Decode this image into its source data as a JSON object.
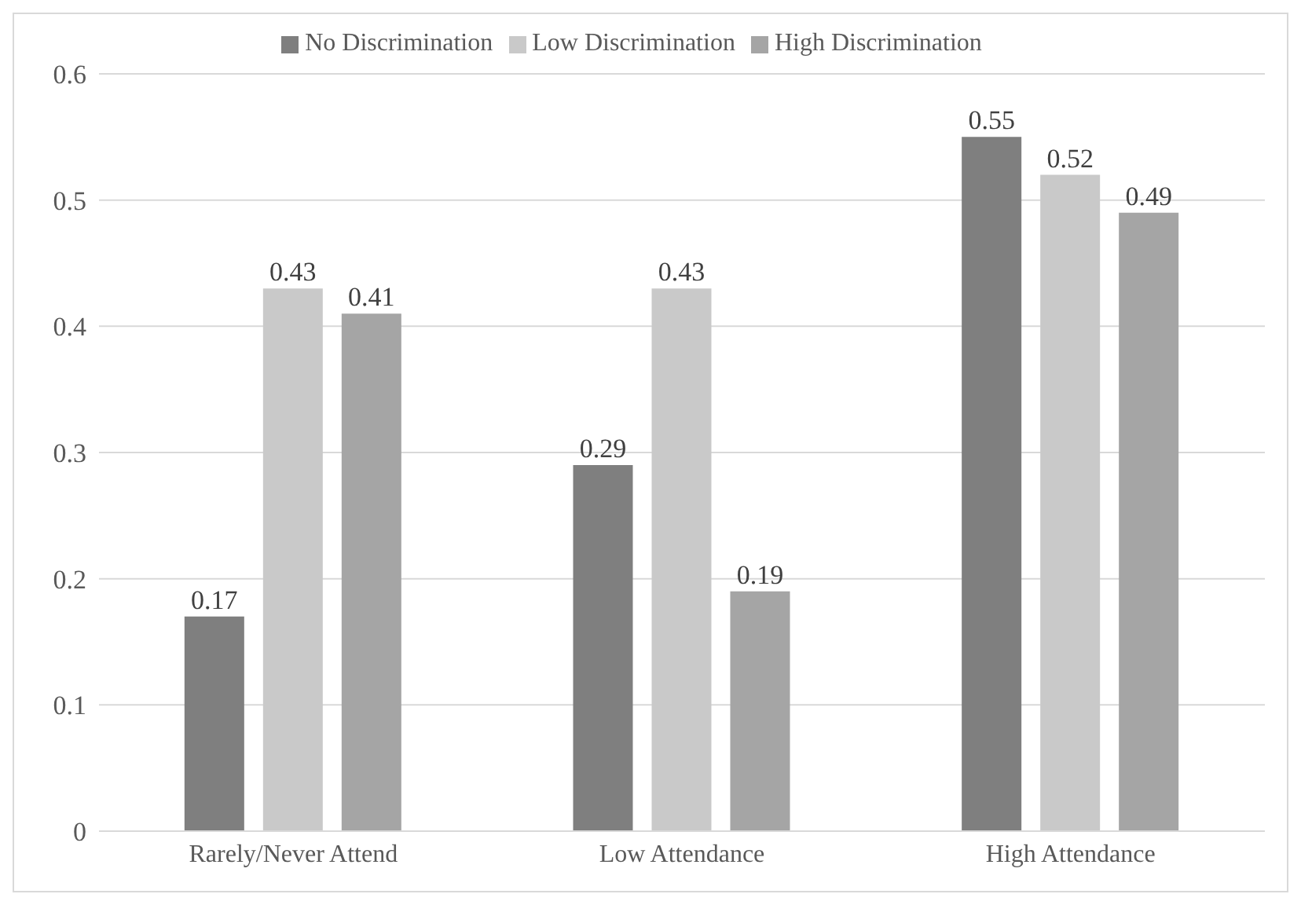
{
  "chart_data": {
    "type": "bar",
    "categories": [
      "Rarely/Never Attend",
      "Low Attendance",
      "High Attendance"
    ],
    "series": [
      {
        "name": "No Discrimination",
        "color": "#7f7f7f",
        "values": [
          0.17,
          0.29,
          0.55
        ]
      },
      {
        "name": "Low Discrimination",
        "color": "#c9c9c9",
        "values": [
          0.43,
          0.43,
          0.52
        ]
      },
      {
        "name": "High Discrimination",
        "color": "#a5a5a5",
        "values": [
          0.41,
          0.19,
          0.49
        ]
      }
    ],
    "ylim": [
      0,
      0.6
    ],
    "yticks": [
      0,
      0.1,
      0.2,
      0.3,
      0.4,
      0.5,
      0.6
    ],
    "grid": "y",
    "legend": "top",
    "data_labels": true
  }
}
